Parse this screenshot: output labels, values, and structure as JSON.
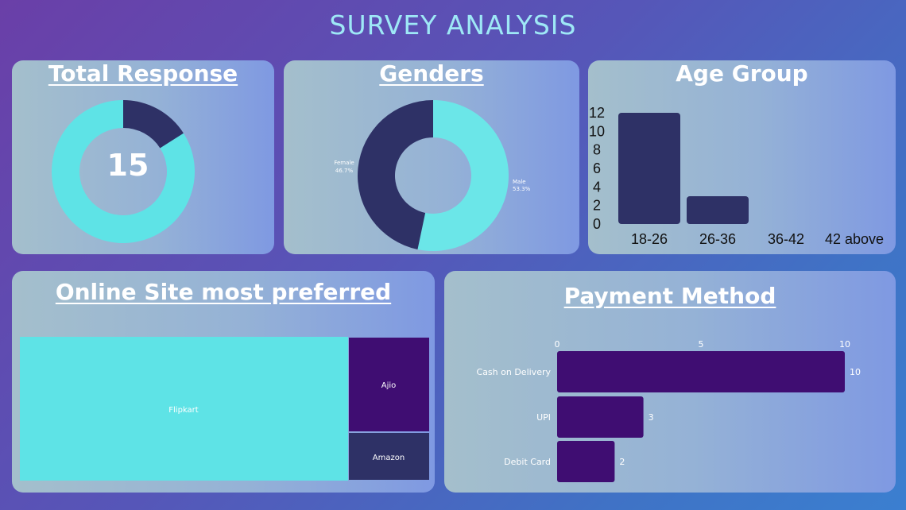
{
  "header": {
    "title": "SURVEY ANALYSIS"
  },
  "colors": {
    "cyan": "#5ee3e6",
    "navy": "#2e3166",
    "purple": "#3f0d72",
    "title": "#9ee8f6"
  },
  "chart_data": [
    {
      "id": "total",
      "type": "pie",
      "title": "Total Response",
      "center_label": "15",
      "values": [
        0.16,
        0.84
      ]
    },
    {
      "id": "genders",
      "type": "pie",
      "title": "Genders",
      "categories": [
        "Male",
        "Female"
      ],
      "values": [
        53.3,
        46.7
      ],
      "labels": [
        "53.3%",
        "46.7%"
      ]
    },
    {
      "id": "age",
      "type": "bar",
      "title": "Age Group",
      "categories": [
        "18-26",
        "26-36",
        "36-42",
        "42 above"
      ],
      "values": [
        12,
        3,
        0,
        0
      ],
      "ylim": [
        0,
        12
      ],
      "yticks": [
        "0",
        "2",
        "4",
        "6",
        "8",
        "10",
        "12"
      ]
    },
    {
      "id": "site",
      "type": "treemap",
      "title": "Online Site most preferred",
      "categories": [
        "Flipkart",
        "Ajio",
        "Amazon"
      ]
    },
    {
      "id": "payment",
      "type": "bar",
      "orientation": "horizontal",
      "title": "Payment Method",
      "categories": [
        "Cash on Delivery",
        "UPI",
        "Debit Card"
      ],
      "values": [
        10,
        3,
        2
      ],
      "xlim": [
        0,
        10
      ],
      "xticks": [
        "0",
        "5",
        "10"
      ]
    }
  ]
}
